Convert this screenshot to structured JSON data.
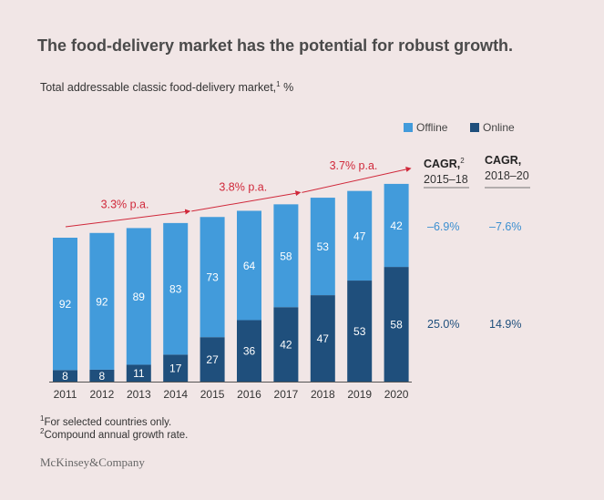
{
  "title": "The food-delivery market has the potential for robust growth.",
  "subtitle": {
    "text": "Total addressable classic food-delivery market,",
    "sup": "1",
    "unit": " %"
  },
  "legend": [
    {
      "label": "Offline",
      "color": "#429bdb"
    },
    {
      "label": "Online",
      "color": "#1f4f7c"
    }
  ],
  "cagr": {
    "columns": [
      {
        "label": "CAGR,",
        "sup": "2",
        "period": "2015–18",
        "offline": "–6.9%",
        "online": "25.0%"
      },
      {
        "label": "CAGR,",
        "sup": "",
        "period": "2018–20",
        "offline": "–7.6%",
        "online": "14.9%"
      }
    ],
    "offline_color": "#3b8fd0",
    "online_color": "#1f4f7c"
  },
  "chart_data": {
    "type": "bar",
    "stacked": true,
    "categories": [
      "2011",
      "2012",
      "2013",
      "2014",
      "2015",
      "2016",
      "2017",
      "2018",
      "2019",
      "2020"
    ],
    "series": [
      {
        "name": "Online",
        "values": [
          8,
          8,
          11,
          17,
          27,
          36,
          42,
          47,
          53,
          58
        ],
        "color": "#1f4f7c"
      },
      {
        "name": "Offline",
        "values": [
          92,
          92,
          89,
          83,
          73,
          64,
          58,
          53,
          47,
          42
        ],
        "color": "#429bdb"
      }
    ],
    "relative_market_size": [
      100,
      103.3,
      106.7,
      110.2,
      114.4,
      118.7,
      123.2,
      127.8,
      132.5,
      137.4
    ],
    "growth_annotations": [
      {
        "label": "3.3% p.a.",
        "from": "2011",
        "to": "2014"
      },
      {
        "label": "3.8% p.a.",
        "from": "2014",
        "to": "2017"
      },
      {
        "label": "3.7% p.a.",
        "from": "2017",
        "to": "2020"
      }
    ],
    "annotation_color": "#d0283a",
    "grid": false
  },
  "footnotes": [
    {
      "sup": "1",
      "text": "For selected countries only."
    },
    {
      "sup": "2",
      "text": "Compound annual growth rate."
    }
  ],
  "logo": "McKinsey&Company"
}
